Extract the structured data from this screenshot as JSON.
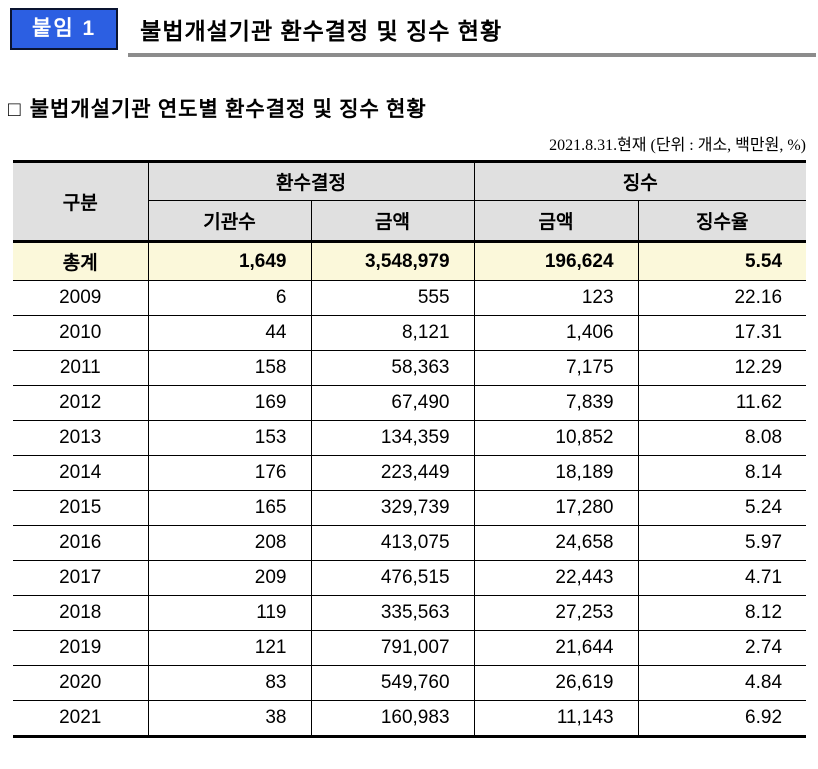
{
  "page": {
    "badge_label": "붙임 1",
    "title": "불법개설기관 환수결정 및 징수 현황",
    "subtitle_marker": "□",
    "subtitle": "불법개설기관 연도별 환수결정 및 징수 현황",
    "note": "2021.8.31.현재 (단위 : 개소, 백만원, %)"
  },
  "colors": {
    "badge_bg": "#2c5fe2",
    "badge_border": "#0a1430",
    "title_rule": "#8c8c8c",
    "header_bg": "#e0e0e0",
    "total_row_bg": "#fbf8da"
  },
  "table": {
    "header": {
      "col_group": "구분",
      "group1": "환수결정",
      "group2": "징수",
      "sub1": "기관수",
      "sub2": "금액",
      "sub3": "금액",
      "sub4": "징수율"
    },
    "total_row": {
      "label": "총계",
      "values": [
        "1,649",
        "3,548,979",
        "196,624",
        "5.54"
      ]
    },
    "rows": [
      {
        "label": "2009",
        "values": [
          "6",
          "555",
          "123",
          "22.16"
        ]
      },
      {
        "label": "2010",
        "values": [
          "44",
          "8,121",
          "1,406",
          "17.31"
        ]
      },
      {
        "label": "2011",
        "values": [
          "158",
          "58,363",
          "7,175",
          "12.29"
        ]
      },
      {
        "label": "2012",
        "values": [
          "169",
          "67,490",
          "7,839",
          "11.62"
        ]
      },
      {
        "label": "2013",
        "values": [
          "153",
          "134,359",
          "10,852",
          "8.08"
        ]
      },
      {
        "label": "2014",
        "values": [
          "176",
          "223,449",
          "18,189",
          "8.14"
        ]
      },
      {
        "label": "2015",
        "values": [
          "165",
          "329,739",
          "17,280",
          "5.24"
        ]
      },
      {
        "label": "2016",
        "values": [
          "208",
          "413,075",
          "24,658",
          "5.97"
        ]
      },
      {
        "label": "2017",
        "values": [
          "209",
          "476,515",
          "22,443",
          "4.71"
        ]
      },
      {
        "label": "2018",
        "values": [
          "119",
          "335,563",
          "27,253",
          "8.12"
        ]
      },
      {
        "label": "2019",
        "values": [
          "121",
          "791,007",
          "21,644",
          "2.74"
        ]
      },
      {
        "label": "2020",
        "values": [
          "83",
          "549,760",
          "26,619",
          "4.84"
        ]
      },
      {
        "label": "2021",
        "values": [
          "38",
          "160,983",
          "11,143",
          "6.92"
        ]
      }
    ]
  }
}
